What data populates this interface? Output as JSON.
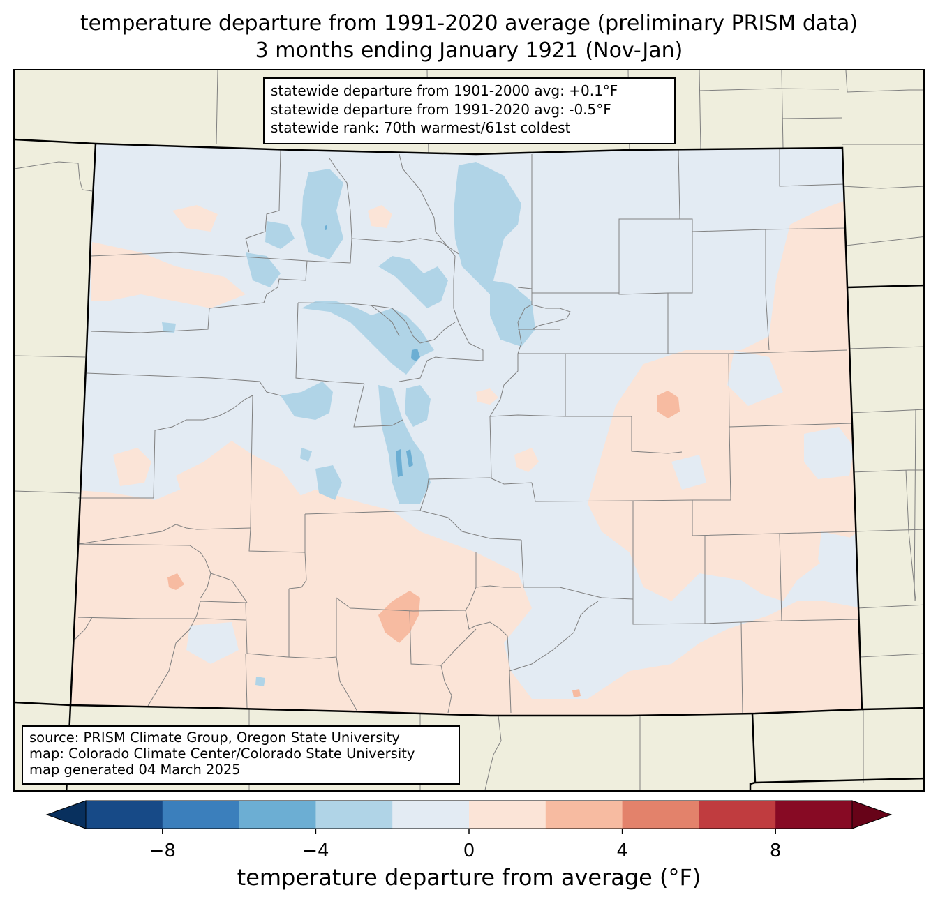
{
  "title": {
    "line1": "temperature departure from 1991-2020 average (preliminary PRISM data)",
    "line2": "3 months ending January 1921 (Nov-Jan)"
  },
  "stats_box": {
    "line1": "statewide departure from 1901-2000 avg: +0.1°F",
    "line2": "statewide departure from 1991-2020 avg: -0.5°F",
    "line3": "statewide rank: 70th warmest/61st coldest"
  },
  "source_box": {
    "line1": "source: PRISM Climate Group, Oregon State University",
    "line2": "map: Colorado Climate Center/Colorado State University",
    "line3": "map generated 04 March 2025"
  },
  "colorbar": {
    "label": "temperature departure from average (°F)",
    "min": -10,
    "max": 10,
    "bins": [
      -10,
      -8,
      -6,
      -4,
      -2,
      0,
      2,
      4,
      6,
      8,
      10
    ],
    "colors": [
      "#174a87",
      "#3b7fbc",
      "#6caed3",
      "#b0d4e7",
      "#e3ebf3",
      "#fbe4d7",
      "#f7bba1",
      "#e3826b",
      "#c03c3f",
      "#870a24"
    ],
    "under_color": "#08305e",
    "over_color": "#670318",
    "ticks": [
      -8,
      -4,
      0,
      4,
      8
    ],
    "tick_labels": [
      "−8",
      "−4",
      "0",
      "4",
      "8"
    ]
  },
  "map_colors": {
    "background": "#efeedd",
    "state_base": "#e3ebf3",
    "warm": "#fbe4d7",
    "warmer": "#f7bba1",
    "cool": "#b0d4e7",
    "cooler": "#6caed3",
    "county_lines": "#808080",
    "state_lines": "#000000"
  }
}
